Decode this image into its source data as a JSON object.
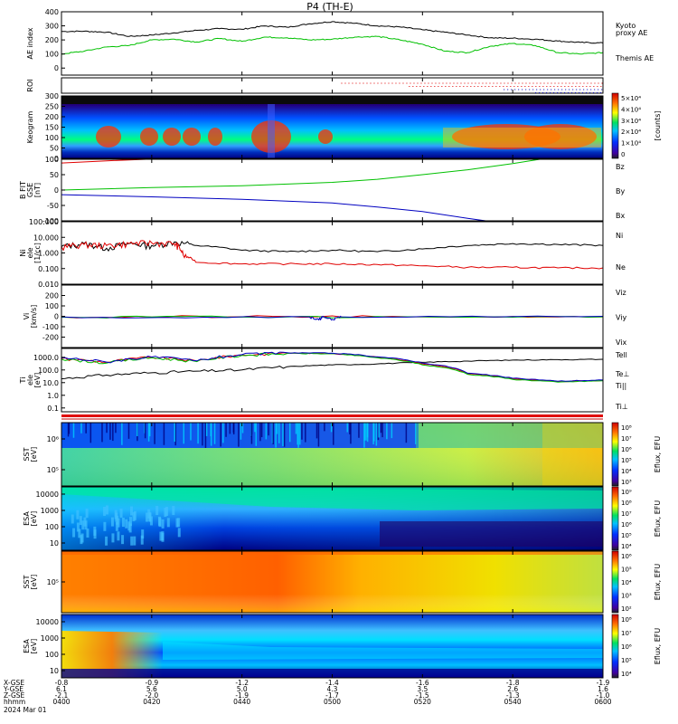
{
  "title": "P4  (TH-E)",
  "colors": {
    "black": "#000000",
    "green": "#00c000",
    "red": "#e00000",
    "blue": "#0000c0"
  },
  "chart_data": [
    {
      "id": "ae",
      "type": "line",
      "ylabel": "AE index",
      "ylim": [
        -50,
        400
      ],
      "yticks": [
        "400",
        "300",
        "200",
        "100",
        "0"
      ],
      "legend": [
        {
          "label": "Kyoto",
          "color": "green"
        },
        {
          "label": "proxy AE",
          "color": "green"
        },
        {
          "label": "Themis AE",
          "color": "black"
        }
      ],
      "series": [
        {
          "name": "Themis AE",
          "color": "black",
          "x": [
            0,
            5,
            10,
            15,
            20,
            25,
            30,
            35,
            40,
            45,
            50,
            55,
            60,
            65,
            70,
            75,
            80,
            85,
            90,
            95,
            100,
            105,
            110,
            115,
            120
          ],
          "values": [
            260,
            262,
            255,
            225,
            235,
            250,
            268,
            280,
            275,
            300,
            290,
            315,
            330,
            318,
            300,
            292,
            272,
            255,
            235,
            215,
            212,
            205,
            192,
            182,
            178
          ]
        },
        {
          "name": "Kyoto proxy AE",
          "color": "green",
          "x": [
            0,
            5,
            10,
            15,
            20,
            25,
            30,
            35,
            40,
            45,
            50,
            55,
            60,
            65,
            70,
            75,
            80,
            85,
            90,
            95,
            100,
            105,
            110,
            115,
            120
          ],
          "values": [
            100,
            120,
            150,
            160,
            200,
            205,
            185,
            210,
            190,
            220,
            215,
            200,
            205,
            220,
            225,
            200,
            170,
            120,
            110,
            155,
            175,
            160,
            110,
            100,
            110
          ]
        }
      ]
    },
    {
      "id": "roi",
      "type": "scatter",
      "ylabel": "ROI",
      "rows": [
        {
          "color": "red",
          "x": [
            62,
            120
          ]
        },
        {
          "color": "red",
          "x": [
            77,
            120
          ]
        },
        {
          "color": "blue",
          "x": [
            98,
            120
          ]
        },
        {
          "color": "blue",
          "x": [
            105,
            120
          ]
        }
      ]
    },
    {
      "id": "keogram",
      "type": "heatmap",
      "ylabel": "Keogram",
      "ylim": [
        0,
        300
      ],
      "yticks": [
        "300",
        "250",
        "200",
        "150",
        "100",
        "50",
        "0"
      ],
      "colorbar": {
        "label": "[counts]",
        "ticks": [
          "5×10⁴",
          "4×10⁴",
          "3×10⁴",
          "2×10⁴",
          "1×10⁴",
          "0"
        ]
      }
    },
    {
      "id": "bfield",
      "type": "line",
      "ylabel": "B FIT",
      "ylabel2": "GSE",
      "yunit": "[nT]",
      "ylim": [
        -100,
        100
      ],
      "yticks": [
        "100",
        "50",
        "0",
        "-50",
        "-100"
      ],
      "series": [
        {
          "name": "Bz",
          "color": "red",
          "x": [
            0,
            10,
            20,
            25
          ],
          "values": [
            88,
            95,
            101,
            104
          ]
        },
        {
          "name": "By",
          "color": "green",
          "x": [
            0,
            20,
            40,
            60,
            70,
            80,
            90,
            100,
            106
          ],
          "values": [
            0,
            8,
            14,
            25,
            35,
            50,
            66,
            86,
            100
          ]
        },
        {
          "name": "Bx",
          "color": "blue",
          "x": [
            0,
            20,
            40,
            60,
            70,
            80,
            90,
            94
          ],
          "values": [
            -15,
            -22,
            -30,
            -42,
            -55,
            -70,
            -92,
            -100
          ]
        }
      ]
    },
    {
      "id": "density",
      "type": "line",
      "ylabel": "Ni",
      "ylabel2": "ele",
      "yunit": "[1/cc]",
      "ylim": [
        0.01,
        100
      ],
      "yticks": [
        "100.000",
        "10.000",
        "1.000",
        "0.100",
        "0.010"
      ],
      "series": [
        {
          "name": "Ne",
          "color": "black",
          "x": [
            0,
            5,
            10,
            15,
            20,
            25,
            30,
            40,
            50,
            60,
            70,
            80,
            90,
            100,
            110,
            120
          ],
          "values": [
            2.5,
            4,
            2,
            4,
            3,
            5,
            3,
            1.5,
            1.2,
            1.5,
            1.2,
            1.8,
            3,
            4,
            3.5,
            3
          ]
        },
        {
          "name": "Ni",
          "color": "red",
          "x": [
            0,
            5,
            10,
            15,
            20,
            25,
            27,
            30,
            40,
            50,
            60,
            70,
            80,
            90,
            100,
            110,
            120
          ],
          "values": [
            2.5,
            3.5,
            3,
            4,
            4.5,
            4,
            0.7,
            0.25,
            0.2,
            0.2,
            0.2,
            0.18,
            0.15,
            0.12,
            0.12,
            0.11,
            0.11
          ]
        }
      ]
    },
    {
      "id": "velocity",
      "type": "line",
      "ylabel": "Vi",
      "yunit": "[km/s]",
      "ylim": [
        -300,
        300
      ],
      "yticks": [
        "200",
        "100",
        "0",
        "-100",
        "-200"
      ],
      "series": [
        {
          "name": "Vix",
          "color": "blue",
          "x": [
            0,
            55,
            57,
            58,
            60,
            62,
            120
          ],
          "values": [
            -5,
            -5,
            -35,
            -5,
            -30,
            -5,
            0
          ]
        },
        {
          "name": "Viy",
          "color": "green",
          "x": [
            0,
            40,
            80,
            120
          ],
          "values": [
            -10,
            -8,
            -5,
            -5
          ]
        },
        {
          "name": "Viz",
          "color": "red",
          "x": [
            0,
            40,
            80,
            120
          ],
          "values": [
            -5,
            -5,
            -5,
            -5
          ]
        }
      ]
    },
    {
      "id": "temperature",
      "type": "line",
      "ylabel": "Ti",
      "ylabel2": "ele",
      "yunit": "[eV]",
      "ylim": [
        0.05,
        5000
      ],
      "yticks": [
        "1000.0",
        "100.0",
        "10.0",
        "1.0",
        "0.1"
      ],
      "series": [
        {
          "name": "Tell",
          "color": "black",
          "x": [
            0,
            10,
            20,
            30,
            40,
            50,
            60,
            70,
            80,
            90,
            100,
            110,
            120
          ],
          "values": [
            20,
            40,
            60,
            80,
            100,
            180,
            250,
            300,
            400,
            500,
            600,
            650,
            700
          ]
        },
        {
          "name": "Te⊥",
          "color": "red",
          "x": [
            0,
            10,
            20,
            30,
            40,
            50,
            60,
            70,
            80,
            90,
            100,
            110,
            120
          ],
          "values": [
            800,
            400,
            1000,
            500,
            1500,
            2200,
            2000,
            1000,
            300,
            50,
            20,
            12,
            15
          ]
        },
        {
          "name": "Ti||",
          "color": "green",
          "x": [
            0,
            10,
            20,
            30,
            40,
            50,
            60,
            70,
            80,
            90,
            100,
            110,
            120
          ],
          "values": [
            700,
            350,
            900,
            450,
            1400,
            2000,
            1900,
            900,
            250,
            45,
            18,
            11,
            14
          ]
        },
        {
          "name": "Ti⊥",
          "color": "blue",
          "x": [
            0,
            10,
            20,
            30,
            40,
            50,
            60,
            70,
            80,
            90,
            100,
            110,
            120
          ],
          "values": [
            900,
            420,
            1050,
            520,
            1600,
            2300,
            2100,
            1100,
            350,
            55,
            22,
            13,
            16
          ]
        }
      ]
    },
    {
      "id": "sst-ele",
      "type": "heatmap",
      "ylabel": "SST",
      "yunit": "[eV]",
      "yticks": [
        "10⁶",
        "10⁵"
      ],
      "colorbar": {
        "label": "Eflux, EFU",
        "ticks": [
          "10⁸",
          "10⁷",
          "10⁶",
          "10⁵",
          "10⁴",
          "10³"
        ]
      }
    },
    {
      "id": "esa-ele",
      "type": "heatmap",
      "ylabel": "ESA",
      "yunit": "[eV]",
      "yticks": [
        "10000",
        "1000",
        "100",
        "10"
      ],
      "colorbar": {
        "label": "Eflux, EFU",
        "ticks": [
          "10⁹",
          "10⁸",
          "10⁷",
          "10⁶",
          "10⁵",
          "10⁴"
        ]
      }
    },
    {
      "id": "sst-ion",
      "type": "heatmap",
      "ylabel": "SST",
      "yunit": "[eV]",
      "yticks": [
        "10⁵"
      ],
      "colorbar": {
        "label": "Eflux, EFU",
        "ticks": [
          "10⁶",
          "10⁵",
          "10⁴",
          "10³",
          "10²"
        ]
      }
    },
    {
      "id": "esa-ion",
      "type": "heatmap",
      "ylabel": "ESA",
      "yunit": "[eV]",
      "yticks": [
        "10000",
        "1000",
        "100",
        "10"
      ],
      "colorbar": {
        "label": "Eflux, EFU",
        "ticks": [
          "10⁸",
          "10⁷",
          "10⁶",
          "10⁵",
          "10⁴"
        ]
      }
    }
  ],
  "time_axis": {
    "row_labels": [
      "X-GSE",
      "Y-GSE",
      "Z-GSE",
      "hhmm",
      "2024 Mar 01"
    ],
    "ticks": [
      {
        "x": "-0.8",
        "y": "6.1",
        "z": "-2.1",
        "hhmm": "0400"
      },
      {
        "x": "-0.9",
        "y": "5.6",
        "z": "-2.0",
        "hhmm": "0420"
      },
      {
        "x": "-1.2",
        "y": "5.0",
        "z": "-1.9",
        "hhmm": "0440"
      },
      {
        "x": "-1.4",
        "y": "4.3",
        "z": "-1.7",
        "hhmm": "0500"
      },
      {
        "x": "-1.6",
        "y": "3.5",
        "z": "-1.5",
        "hhmm": "0520"
      },
      {
        "x": "-1.8",
        "y": "2.6",
        "z": "-1.3",
        "hhmm": "0540"
      },
      {
        "x": "-1.9",
        "y": "1.6",
        "z": "-1.0",
        "hhmm": "0600"
      }
    ]
  }
}
